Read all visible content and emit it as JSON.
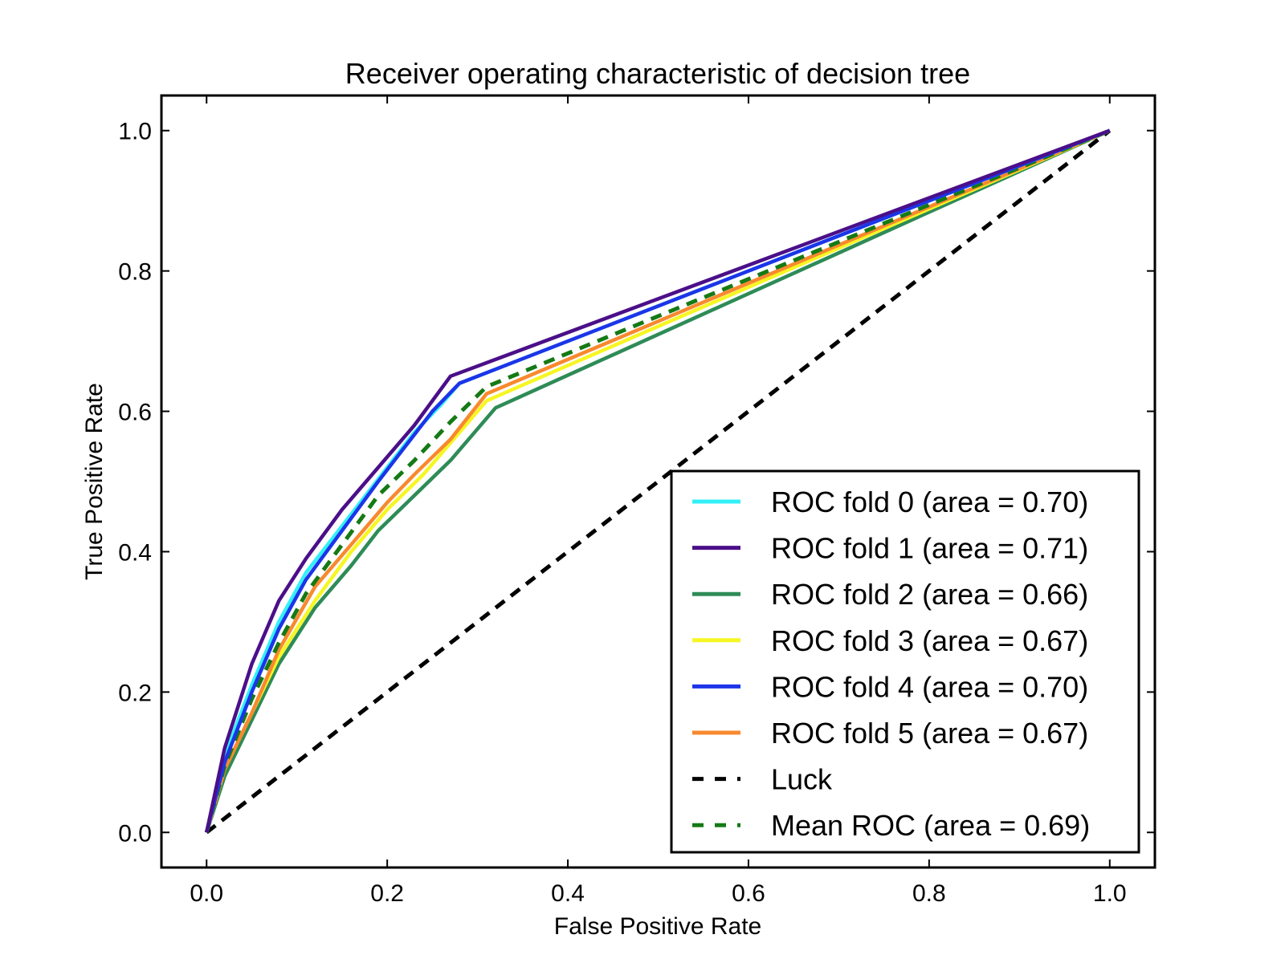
{
  "chart_data": {
    "type": "line",
    "title": "Receiver operating characteristic of decision tree",
    "xlabel": "False Positive Rate",
    "ylabel": "True Positive Rate",
    "xlim": [
      -0.05,
      1.05
    ],
    "ylim": [
      -0.05,
      1.05
    ],
    "xticks": [
      "0.0",
      "0.2",
      "0.4",
      "0.6",
      "0.8",
      "1.0"
    ],
    "yticks": [
      "0.0",
      "0.2",
      "0.4",
      "0.6",
      "0.8",
      "1.0"
    ],
    "grid": false,
    "legend_position": "lower-right",
    "series": [
      {
        "name": "ROC fold 0 (area = 0.70)",
        "color": "#33f0f8",
        "style": "solid",
        "x": [
          0,
          0.02,
          0.05,
          0.08,
          0.11,
          0.14,
          0.17,
          0.2,
          0.23,
          0.26,
          0.28,
          1.0
        ],
        "y": [
          0,
          0.11,
          0.21,
          0.3,
          0.37,
          0.42,
          0.47,
          0.52,
          0.57,
          0.61,
          0.64,
          1.0
        ]
      },
      {
        "name": "ROC fold 1 (area = 0.71)",
        "color": "#4b0f89",
        "style": "solid",
        "x": [
          0,
          0.02,
          0.05,
          0.08,
          0.11,
          0.15,
          0.19,
          0.23,
          0.27,
          1.0
        ],
        "y": [
          0,
          0.12,
          0.24,
          0.33,
          0.39,
          0.46,
          0.52,
          0.58,
          0.65,
          1.0
        ]
      },
      {
        "name": "ROC fold 2 (area = 0.66)",
        "color": "#2e8b57",
        "style": "solid",
        "x": [
          0,
          0.02,
          0.05,
          0.08,
          0.12,
          0.16,
          0.19,
          0.23,
          0.27,
          0.32,
          1.0
        ],
        "y": [
          0,
          0.08,
          0.16,
          0.24,
          0.32,
          0.38,
          0.43,
          0.48,
          0.53,
          0.605,
          1.0
        ]
      },
      {
        "name": "ROC fold 3 (area = 0.67)",
        "color": "#f6f623",
        "style": "solid",
        "x": [
          0,
          0.02,
          0.05,
          0.08,
          0.12,
          0.16,
          0.2,
          0.24,
          0.28,
          0.31,
          1.0
        ],
        "y": [
          0,
          0.09,
          0.17,
          0.25,
          0.33,
          0.4,
          0.46,
          0.51,
          0.57,
          0.615,
          1.0
        ]
      },
      {
        "name": "ROC fold 4 (area = 0.70)",
        "color": "#1c35e8",
        "style": "solid",
        "x": [
          0,
          0.02,
          0.05,
          0.08,
          0.11,
          0.15,
          0.19,
          0.22,
          0.25,
          0.28,
          1.0
        ],
        "y": [
          0,
          0.1,
          0.2,
          0.29,
          0.36,
          0.43,
          0.5,
          0.55,
          0.6,
          0.64,
          1.0
        ]
      },
      {
        "name": "ROC fold 5 (area = 0.67)",
        "color": "#f8892f",
        "style": "solid",
        "x": [
          0,
          0.02,
          0.05,
          0.08,
          0.12,
          0.16,
          0.2,
          0.23,
          0.27,
          0.31,
          1.0
        ],
        "y": [
          0,
          0.09,
          0.17,
          0.26,
          0.35,
          0.41,
          0.47,
          0.51,
          0.56,
          0.625,
          1.0
        ]
      },
      {
        "name": "Luck",
        "color": "#000000",
        "style": "dashed",
        "x": [
          0,
          1.0
        ],
        "y": [
          0,
          1.0
        ]
      },
      {
        "name": "Mean ROC (area = 0.69)",
        "color": "#157a15",
        "style": "dashed",
        "x": [
          0,
          0.02,
          0.05,
          0.08,
          0.11,
          0.15,
          0.19,
          0.23,
          0.27,
          0.31,
          1.0
        ],
        "y": [
          0,
          0.095,
          0.19,
          0.27,
          0.34,
          0.41,
          0.48,
          0.53,
          0.585,
          0.635,
          1.0
        ]
      }
    ]
  }
}
